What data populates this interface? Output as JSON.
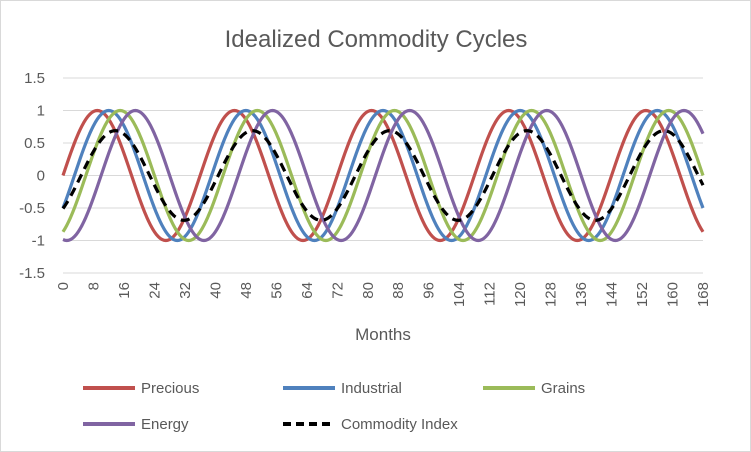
{
  "chart_data": {
    "type": "line",
    "title": "Idealized Commodity Cycles",
    "xlabel": "Months",
    "ylabel": "",
    "xlim": [
      0,
      168
    ],
    "ylim": [
      -1.5,
      1.5
    ],
    "x_ticks": [
      0,
      8,
      16,
      24,
      32,
      40,
      48,
      56,
      64,
      72,
      80,
      88,
      96,
      104,
      112,
      120,
      128,
      136,
      144,
      152,
      160,
      168
    ],
    "y_ticks": [
      1.5,
      1,
      0.5,
      0,
      -0.5,
      -1,
      -1.5
    ],
    "y_tick_labels": [
      "1.5",
      "1",
      "0.5",
      "0",
      "-0.5",
      "-1",
      "-1.5"
    ],
    "grid": "horizontal",
    "legend_position": "bottom",
    "series": [
      {
        "name": "Precious",
        "color": "#c0504d",
        "style": "solid",
        "period_months": 36,
        "amplitude": 1,
        "phase_shift_months": 0
      },
      {
        "name": "Industrial",
        "color": "#4f81bd",
        "style": "solid",
        "period_months": 36,
        "amplitude": 1,
        "phase_shift_months": 3
      },
      {
        "name": "Grains",
        "color": "#9bbb59",
        "style": "solid",
        "period_months": 36,
        "amplitude": 1,
        "phase_shift_months": 6
      },
      {
        "name": "Energy",
        "color": "#8064a2",
        "style": "solid",
        "period_months": 36,
        "amplitude": 1,
        "phase_shift_months": 10
      },
      {
        "name": "Commodity Index",
        "color": "#000000",
        "style": "dashed",
        "period_months": 36,
        "amplitude": 0.69,
        "phase_shift_months": 4.75
      }
    ]
  }
}
